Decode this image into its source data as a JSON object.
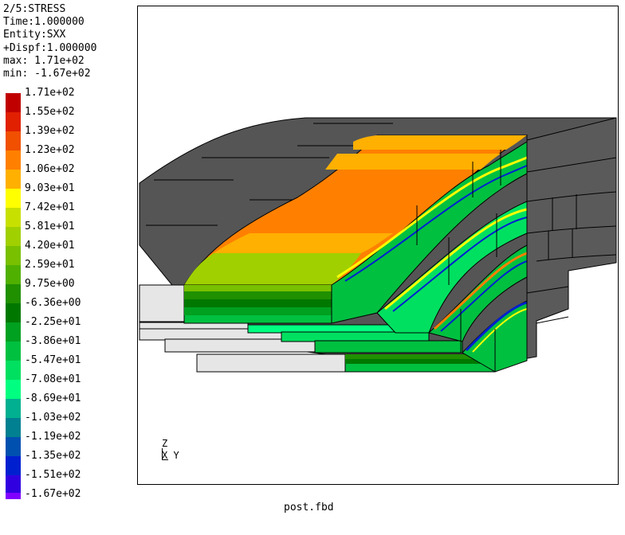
{
  "info": {
    "line1": "2/5:STRESS",
    "line2": "Time:1.000000",
    "line3": "Entity:SXX",
    "line4": "+Dispf:1.000000",
    "line5": "max: 1.71e+02",
    "line6": "min: -1.67e+02"
  },
  "legend": [
    {
      "label": "1.71e+02",
      "color": "#c00000"
    },
    {
      "label": "1.55e+02",
      "color": "#e02000"
    },
    {
      "label": "1.39e+02",
      "color": "#f05000"
    },
    {
      "label": "1.23e+02",
      "color": "#ff8000"
    },
    {
      "label": "1.06e+02",
      "color": "#ffb000"
    },
    {
      "label": "9.03e+01",
      "color": "#ffff00"
    },
    {
      "label": "7.42e+01",
      "color": "#c8e000"
    },
    {
      "label": "5.81e+01",
      "color": "#a0d000"
    },
    {
      "label": "4.20e+01",
      "color": "#78c000"
    },
    {
      "label": "2.59e+01",
      "color": "#50b000"
    },
    {
      "label": "9.75e+00",
      "color": "#209000"
    },
    {
      "label": "-6.36e+00",
      "color": "#007800"
    },
    {
      "label": "-2.25e+01",
      "color": "#00a020"
    },
    {
      "label": "-3.86e+01",
      "color": "#00c040"
    },
    {
      "label": "-5.47e+01",
      "color": "#00e060"
    },
    {
      "label": "-7.08e+01",
      "color": "#00ff80"
    },
    {
      "label": "-8.69e+01",
      "color": "#00b090"
    },
    {
      "label": "-1.03e+02",
      "color": "#008090"
    },
    {
      "label": "-1.19e+02",
      "color": "#0050b0"
    },
    {
      "label": "-1.35e+02",
      "color": "#0020d0"
    },
    {
      "label": "-1.51e+02",
      "color": "#3000e0"
    },
    {
      "label": "-1.67e+02",
      "color": "#8000ff"
    }
  ],
  "triad": {
    "z": "Z",
    "xy": "X Y"
  },
  "filename": "post.fbd",
  "colors": {
    "housing": "#555555",
    "plate": "#e6e6e6",
    "orange": "#ff8000",
    "background": "#ffffff"
  }
}
